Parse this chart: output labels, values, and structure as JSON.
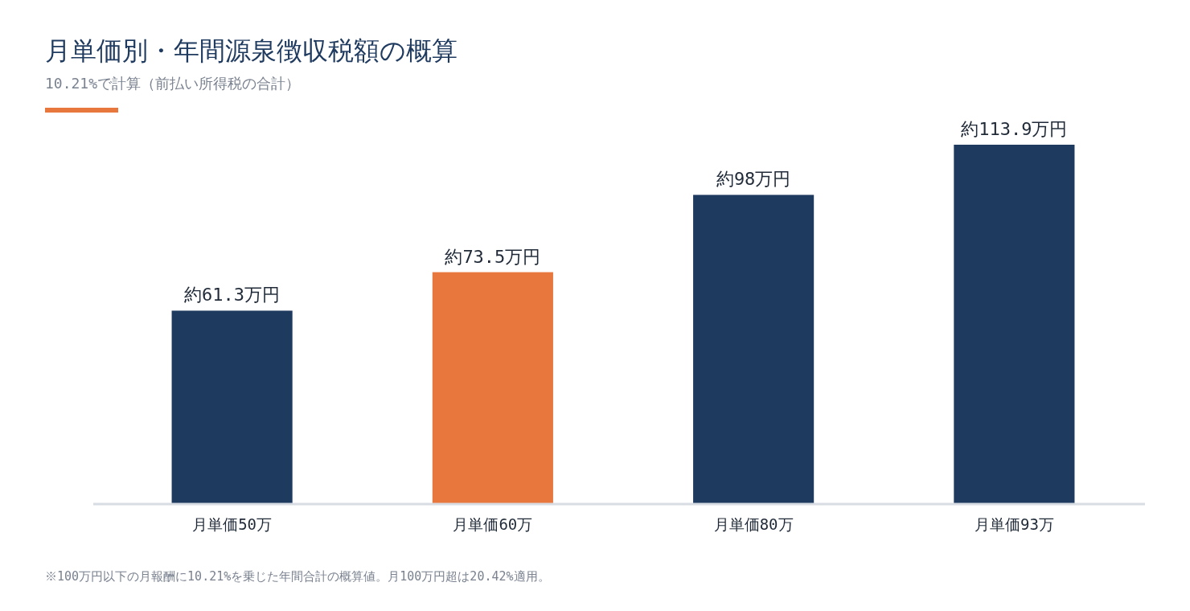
{
  "chart_data": {
    "type": "bar",
    "title": "月単価別・年間源泉徴収税額の概算",
    "subtitle": "10.21%で計算（前払い所得税の合計）",
    "categories": [
      "月単価50万",
      "月単価60万",
      "月単価80万",
      "月単価93万"
    ],
    "values": [
      61.3,
      73.5,
      98,
      113.9
    ],
    "colors": [
      "#1f3a5f",
      "#e8773d",
      "#1f3a5f",
      "#1f3a5f"
    ],
    "value_labels": [
      "約61.3万円",
      "約73.5万円",
      "約98万円",
      "約113.9万円"
    ],
    "annotations": [
      "※100万円以下の月報酬に10.21%を乗じた年間合計の概算値。月100万円超は20.42%適用。"
    ]
  }
}
